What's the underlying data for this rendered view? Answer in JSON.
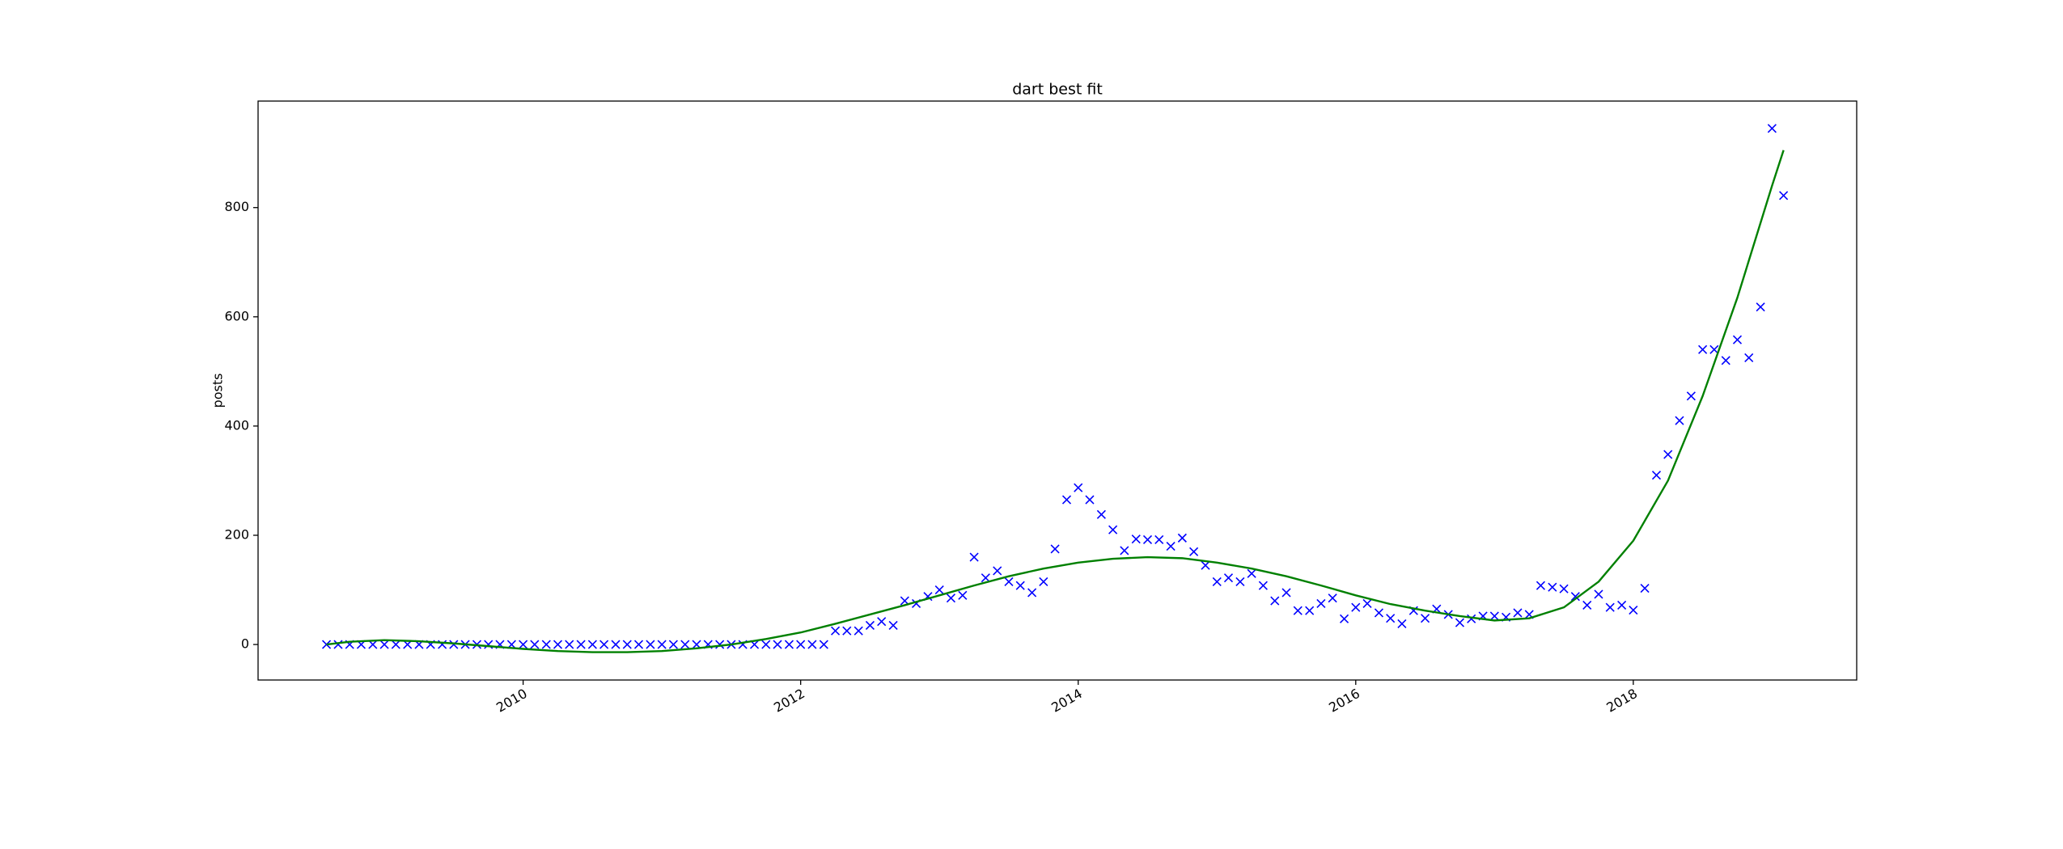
{
  "chart_data": {
    "type": "scatter",
    "title": "dart best fit",
    "y_label": "posts",
    "xlim": [
      2008.09,
      2019.61
    ],
    "ylim": [
      -65,
      995
    ],
    "xticks": [
      2010,
      2012,
      2014,
      2016,
      2018
    ],
    "yticks": [
      0,
      200,
      400,
      600,
      800
    ],
    "x_tick_rotation": 30,
    "grid": false,
    "series": [
      {
        "type": "scatter",
        "marker": "x",
        "color": "blue",
        "x": [
          2008.583,
          2008.667,
          2008.75,
          2008.833,
          2008.917,
          2009.0,
          2009.083,
          2009.167,
          2009.25,
          2009.333,
          2009.417,
          2009.5,
          2009.583,
          2009.667,
          2009.75,
          2009.833,
          2009.917,
          2010.0,
          2010.083,
          2010.167,
          2010.25,
          2010.333,
          2010.417,
          2010.5,
          2010.583,
          2010.667,
          2010.75,
          2010.833,
          2010.917,
          2011.0,
          2011.083,
          2011.167,
          2011.25,
          2011.333,
          2011.417,
          2011.5,
          2011.583,
          2011.667,
          2011.75,
          2011.833,
          2011.917,
          2012.0,
          2012.083,
          2012.167,
          2012.25,
          2012.333,
          2012.417,
          2012.5,
          2012.583,
          2012.667,
          2012.75,
          2012.833,
          2012.917,
          2013.0,
          2013.083,
          2013.167,
          2013.25,
          2013.333,
          2013.417,
          2013.5,
          2013.583,
          2013.667,
          2013.75,
          2013.833,
          2013.917,
          2014.0,
          2014.083,
          2014.167,
          2014.25,
          2014.333,
          2014.417,
          2014.5,
          2014.583,
          2014.667,
          2014.75,
          2014.833,
          2014.917,
          2015.0,
          2015.083,
          2015.167,
          2015.25,
          2015.333,
          2015.417,
          2015.5,
          2015.583,
          2015.667,
          2015.75,
          2015.833,
          2015.917,
          2016.0,
          2016.083,
          2016.167,
          2016.25,
          2016.333,
          2016.417,
          2016.5,
          2016.583,
          2016.667,
          2016.75,
          2016.833,
          2016.917,
          2017.0,
          2017.083,
          2017.167,
          2017.25,
          2017.333,
          2017.417,
          2017.5,
          2017.583,
          2017.667,
          2017.75,
          2017.833,
          2017.917,
          2018.0,
          2018.083,
          2018.167,
          2018.25,
          2018.333,
          2018.417,
          2018.5,
          2018.583,
          2018.667,
          2018.75,
          2018.833,
          2018.917,
          2019.0,
          2019.083
        ],
        "values": [
          0,
          0,
          0,
          0,
          0,
          0,
          0,
          0,
          0,
          0,
          0,
          0,
          0,
          0,
          0,
          0,
          0,
          0,
          0,
          0,
          0,
          0,
          0,
          0,
          0,
          0,
          0,
          0,
          0,
          0,
          0,
          0,
          0,
          0,
          0,
          0,
          0,
          0,
          0,
          0,
          0,
          0,
          0,
          0,
          25,
          25,
          25,
          35,
          42,
          35,
          80,
          75,
          88,
          100,
          85,
          90,
          160,
          122,
          135,
          115,
          108,
          95,
          115,
          175,
          265,
          287,
          265,
          238,
          210,
          172,
          193,
          192,
          192,
          180,
          195,
          170,
          145,
          115,
          122,
          115,
          130,
          108,
          80,
          95,
          62,
          62,
          75,
          85,
          47,
          68,
          75,
          58,
          48,
          38,
          62,
          48,
          65,
          55,
          40,
          47,
          52,
          52,
          50,
          58,
          55,
          108,
          105,
          102,
          88,
          72,
          92,
          68,
          72,
          63,
          103,
          310,
          348,
          410,
          455,
          540,
          540,
          520,
          558,
          525,
          618,
          945,
          822
        ]
      },
      {
        "type": "line",
        "color": "green",
        "x": [
          2008.583,
          2008.75,
          2009,
          2009.25,
          2009.5,
          2009.75,
          2010,
          2010.25,
          2010.5,
          2010.75,
          2011,
          2011.25,
          2011.5,
          2011.75,
          2012,
          2012.25,
          2012.5,
          2012.75,
          2013,
          2013.25,
          2013.5,
          2013.75,
          2014,
          2014.25,
          2014.5,
          2014.75,
          2015,
          2015.25,
          2015.5,
          2015.75,
          2016,
          2016.25,
          2016.5,
          2016.75,
          2017,
          2017.25,
          2017.5,
          2017.75,
          2018,
          2018.25,
          2018.5,
          2018.75,
          2019,
          2019.083
        ],
        "values": [
          0,
          5,
          8,
          6,
          2,
          -3,
          -8,
          -12,
          -14,
          -14,
          -12,
          -7,
          0,
          10,
          22,
          38,
          55,
          72,
          90,
          108,
          125,
          139,
          150,
          157,
          160,
          158,
          150,
          139,
          125,
          108,
          90,
          74,
          62,
          52,
          44,
          48,
          68,
          115,
          190,
          300,
          455,
          635,
          840,
          905
        ]
      }
    ]
  }
}
